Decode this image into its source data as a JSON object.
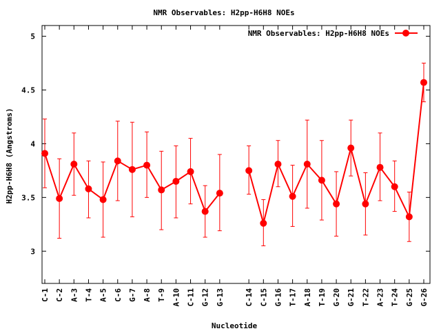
{
  "chart_data": {
    "type": "line",
    "title": "NMR Observables: H2pp-H6H8 NOEs",
    "xlabel": "Nucleotide",
    "ylabel": "H2pp-H6H8 (Angstroms)",
    "ylim": [
      2.7,
      5.1
    ],
    "yticks": [
      3,
      3.5,
      4,
      4.5,
      5
    ],
    "ytick_labels": [
      "3",
      "3.5",
      "4",
      "4.5",
      "5"
    ],
    "grid": false,
    "legend_position": "top-right",
    "series": [
      {
        "name": "NMR Observables: H2pp-H6H8 NOEs",
        "color": "#ff0000",
        "segments": [
          {
            "points": [
              {
                "label": "C-1",
                "y": 3.91,
                "lo": 3.59,
                "hi": 4.23
              },
              {
                "label": "C-2",
                "y": 3.49,
                "lo": 3.12,
                "hi": 3.86
              },
              {
                "label": "A-3",
                "y": 3.81,
                "lo": 3.52,
                "hi": 4.1
              },
              {
                "label": "T-4",
                "y": 3.58,
                "lo": 3.31,
                "hi": 3.84
              },
              {
                "label": "A-5",
                "y": 3.48,
                "lo": 3.13,
                "hi": 3.83
              },
              {
                "label": "C-6",
                "y": 3.84,
                "lo": 3.47,
                "hi": 4.21
              },
              {
                "label": "G-7",
                "y": 3.76,
                "lo": 3.32,
                "hi": 4.2
              },
              {
                "label": "A-8",
                "y": 3.8,
                "lo": 3.5,
                "hi": 4.11
              },
              {
                "label": "T-9",
                "y": 3.57,
                "lo": 3.2,
                "hi": 3.93
              },
              {
                "label": "A-10",
                "y": 3.65,
                "lo": 3.31,
                "hi": 3.98
              },
              {
                "label": "C-11",
                "y": 3.74,
                "lo": 3.44,
                "hi": 4.05
              },
              {
                "label": "G-12",
                "y": 3.37,
                "lo": 3.13,
                "hi": 3.61
              },
              {
                "label": "G-13",
                "y": 3.54,
                "lo": 3.19,
                "hi": 3.9
              }
            ]
          },
          {
            "points": [
              {
                "label": "C-14",
                "y": 3.75,
                "lo": 3.53,
                "hi": 3.98
              },
              {
                "label": "C-15",
                "y": 3.26,
                "lo": 3.05,
                "hi": 3.48
              },
              {
                "label": "G-16",
                "y": 3.81,
                "lo": 3.6,
                "hi": 4.03
              },
              {
                "label": "T-17",
                "y": 3.51,
                "lo": 3.23,
                "hi": 3.8
              },
              {
                "label": "A-18",
                "y": 3.81,
                "lo": 3.4,
                "hi": 4.22
              },
              {
                "label": "T-19",
                "y": 3.66,
                "lo": 3.29,
                "hi": 4.03
              },
              {
                "label": "G-20",
                "y": 3.44,
                "lo": 3.14,
                "hi": 3.74
              },
              {
                "label": "G-21",
                "y": 3.96,
                "lo": 3.7,
                "hi": 4.22
              },
              {
                "label": "T-22",
                "y": 3.44,
                "lo": 3.15,
                "hi": 3.73
              },
              {
                "label": "A-23",
                "y": 3.78,
                "lo": 3.47,
                "hi": 4.1
              },
              {
                "label": "T-24",
                "y": 3.6,
                "lo": 3.37,
                "hi": 3.84
              },
              {
                "label": "G-25",
                "y": 3.32,
                "lo": 3.09,
                "hi": 3.55
              },
              {
                "label": "G-26",
                "y": 4.57,
                "lo": 4.39,
                "hi": 4.75
              }
            ]
          }
        ]
      }
    ]
  }
}
